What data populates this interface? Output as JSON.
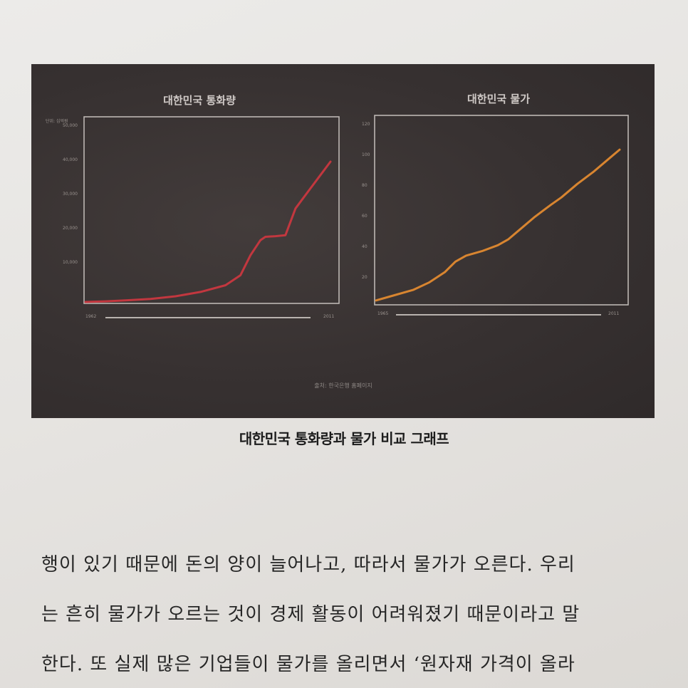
{
  "chart_data": [
    {
      "type": "line",
      "title": "대한민국 통화량",
      "unit_label": "단위: 십억원",
      "x_start_label": "1962",
      "x_end_label": "2011",
      "yticks": [
        "50,000",
        "40,000",
        "30,000",
        "20,000",
        "10,000"
      ],
      "ylim": [
        0,
        55000
      ],
      "color": "#c2373f",
      "series": [
        {
          "x": [
            1962,
            1966,
            1970,
            1975,
            1980,
            1985,
            1990,
            1993,
            1995,
            1997,
            1998,
            2000,
            2002,
            2004,
            2007,
            2009,
            2011
          ],
          "values": [
            0,
            200,
            500,
            900,
            1700,
            3000,
            5000,
            8000,
            14000,
            18500,
            19500,
            19700,
            20000,
            28000,
            34000,
            38000,
            42000
          ]
        }
      ]
    },
    {
      "type": "line",
      "title": "대한민국 물가",
      "x_start_label": "1965",
      "x_end_label": "2011",
      "yticks": [
        "120",
        "100",
        "80",
        "60",
        "40",
        "20"
      ],
      "ylim": [
        0,
        125
      ],
      "color": "#d88530",
      "series": [
        {
          "x": [
            1965,
            1968,
            1972,
            1975,
            1978,
            1980,
            1982,
            1985,
            1988,
            1990,
            1992,
            1995,
            1998,
            2000,
            2003,
            2006,
            2009,
            2011
          ],
          "values": [
            2,
            5,
            9,
            14,
            21,
            28,
            32,
            35,
            39,
            43,
            49,
            58,
            66,
            71,
            80,
            88,
            97,
            103
          ]
        }
      ]
    }
  ],
  "source_note": "출처: 한국은행 홈페이지",
  "caption": "대한민국 통화량과 물가 비교 그래프",
  "body_lines": [
    "행이 있기 때문에 돈의 양이 늘어나고, 따라서 물가가 오른다. 우리",
    "는 흔히 물가가 오르는 것이 경제 활동이 어려워졌기 때문이라고 말",
    "한다. 또 실제 많은 기업들이 물가를 올리면서 ‘원자재 가격이 올라"
  ]
}
